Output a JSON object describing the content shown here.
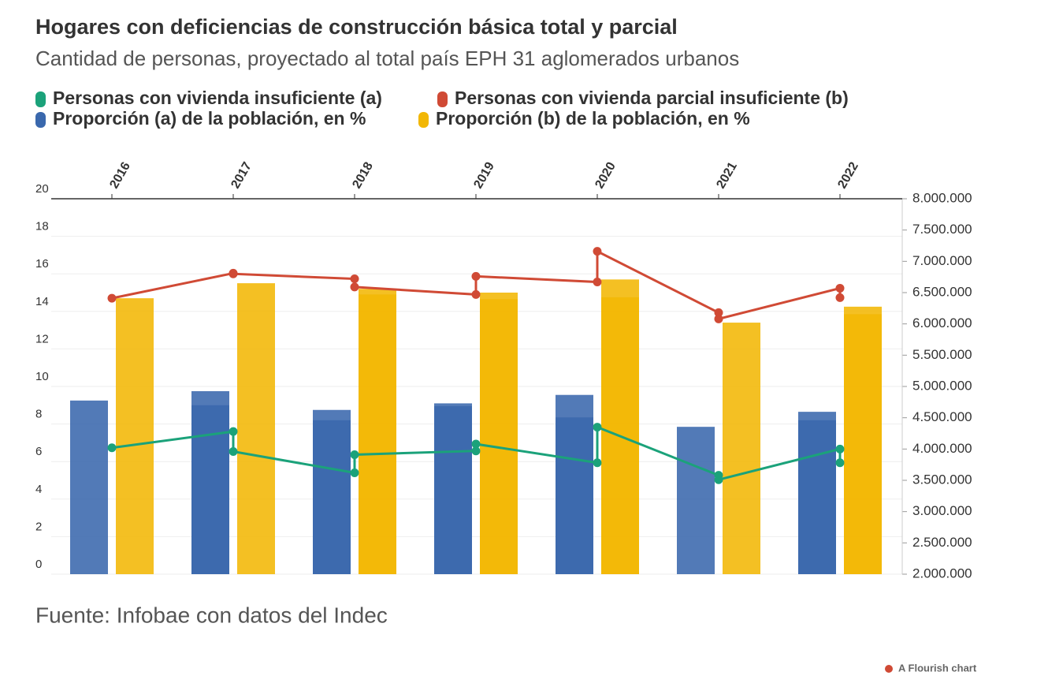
{
  "chart_data": {
    "type": "combo",
    "title": "Hogares con deficiencias de construcción básica total y parcial",
    "subtitle": "Cantidad de personas, proyectado al total país EPH 31 aglomerados urbanos",
    "source": "Fuente: Infobae con datos del Indec",
    "credit": "A Flourish chart",
    "categories": [
      "2016",
      null,
      "2017",
      null,
      "2018",
      null,
      "2019",
      null,
      "2020",
      null,
      "2021",
      null,
      "2022",
      null
    ],
    "series": [
      {
        "name": "Personas con vivienda insuficiente (a)",
        "type": "line",
        "axis": "y2",
        "color": "#1ba27a",
        "values": [
          null,
          4020000,
          4280000,
          3960000,
          3620000,
          3910000,
          3970000,
          4080000,
          3780000,
          4350000,
          3580000,
          3510000,
          4000000,
          3780000
        ]
      },
      {
        "name": "Personas con vivienda parcial insuficiente (b)",
        "type": "line",
        "axis": "y2",
        "color": "#d04a35",
        "values": [
          null,
          6410000,
          6810000,
          6800000,
          6720000,
          6590000,
          6470000,
          6760000,
          6670000,
          7160000,
          6180000,
          6080000,
          6570000,
          6420000
        ]
      },
      {
        "name": "Proporción (a) de la población, en %",
        "type": "bar",
        "axis": "y",
        "color": "#3a68ad",
        "values": [
          9.25,
          null,
          9.75,
          9.0,
          8.75,
          8.2,
          9.1,
          8.95,
          9.55,
          8.35,
          7.85,
          null,
          8.65,
          8.2
        ]
      },
      {
        "name": "Proporción (b) de la población, en %",
        "type": "bar",
        "axis": "y",
        "color": "#f2b705",
        "values": [
          14.7,
          null,
          15.5,
          null,
          15.2,
          14.9,
          15.0,
          14.65,
          15.7,
          14.75,
          13.4,
          null,
          14.25,
          13.85
        ]
      }
    ],
    "ylim": [
      0,
      20
    ],
    "yticks": [
      0,
      2,
      4,
      6,
      8,
      10,
      12,
      14,
      16,
      18,
      20
    ],
    "y2lim": [
      2000000,
      8000000
    ],
    "y2ticks": [
      {
        "value": 2000000,
        "label": "2.000.000"
      },
      {
        "value": 2500000,
        "label": "2.500.000"
      },
      {
        "value": 3000000,
        "label": "3.000.000"
      },
      {
        "value": 3500000,
        "label": "3.500.000"
      },
      {
        "value": 4000000,
        "label": "4.000.000"
      },
      {
        "value": 4500000,
        "label": "4.500.000"
      },
      {
        "value": 5000000,
        "label": "5.000.000"
      },
      {
        "value": 5500000,
        "label": "5.500.000"
      },
      {
        "value": 6000000,
        "label": "6.000.000"
      },
      {
        "value": 6500000,
        "label": "6.500.000"
      },
      {
        "value": 7000000,
        "label": "7.000.000"
      },
      {
        "value": 7500000,
        "label": "7.500.000"
      },
      {
        "value": 8000000,
        "label": "8.000.000"
      }
    ],
    "grid": true
  }
}
